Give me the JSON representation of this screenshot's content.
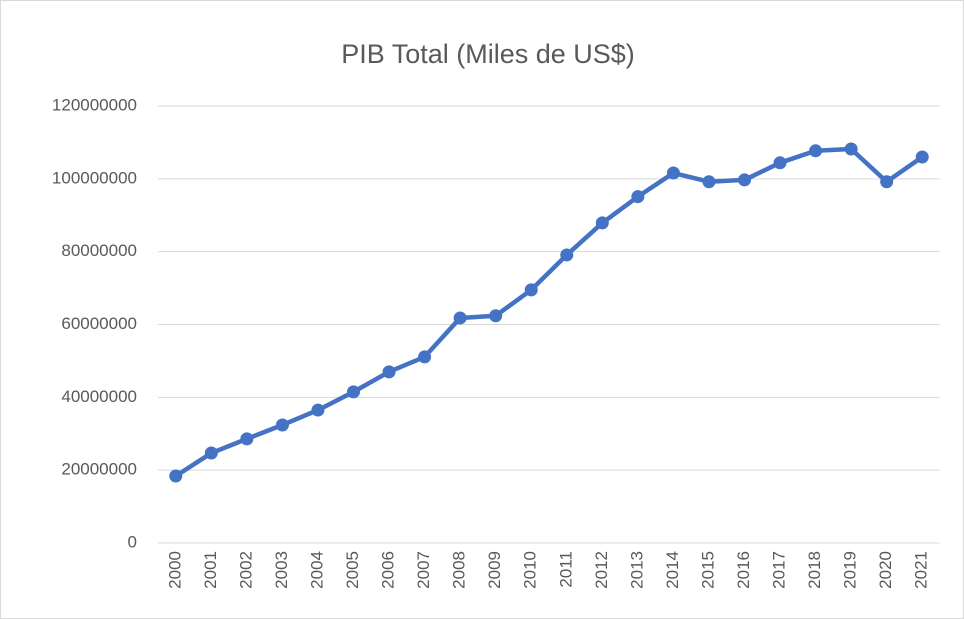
{
  "chart_data": {
    "type": "line",
    "title": "PIB Total (Miles de US$)",
    "categories": [
      "2000",
      "2001",
      "2002",
      "2003",
      "2004",
      "2005",
      "2006",
      "2007",
      "2008",
      "2009",
      "2010",
      "2011",
      "2012",
      "2013",
      "2014",
      "2015",
      "2016",
      "2017",
      "2018",
      "2019",
      "2020",
      "2021"
    ],
    "series": [
      {
        "name": "PIB Total",
        "color": "#4472c4",
        "values": [
          18400000,
          24700000,
          28600000,
          32400000,
          36500000,
          41500000,
          47000000,
          51100000,
          61800000,
          62400000,
          69500000,
          79100000,
          87900000,
          95100000,
          101600000,
          99200000,
          99700000,
          104400000,
          107700000,
          108200000,
          99200000,
          106000000
        ]
      }
    ],
    "ylim": [
      0,
      120000000
    ],
    "yticks": [
      0,
      20000000,
      40000000,
      60000000,
      80000000,
      100000000,
      120000000
    ],
    "grid": true
  }
}
